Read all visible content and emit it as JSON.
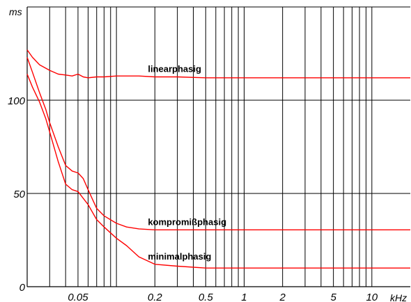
{
  "chart_data": {
    "type": "line",
    "ylabel": "ms",
    "xlabel": "kHz",
    "xscale": "log",
    "xlim": [
      0.02,
      20
    ],
    "ylim": [
      0,
      150
    ],
    "yticks": [
      {
        "value": 0,
        "label": "0"
      },
      {
        "value": 50,
        "label": "50"
      },
      {
        "value": 100,
        "label": "100"
      }
    ],
    "xticks": [
      {
        "value": 0.05,
        "label": "0.05"
      },
      {
        "value": 0.2,
        "label": "0.2"
      },
      {
        "value": 0.5,
        "label": "0.5"
      },
      {
        "value": 1,
        "label": "1"
      },
      {
        "value": 2,
        "label": "2"
      },
      {
        "value": 5,
        "label": "5"
      },
      {
        "value": 10,
        "label": "10"
      }
    ],
    "grid": true,
    "line_color": "#ff0000",
    "series": [
      {
        "name": "linearphasig",
        "x": [
          0.02,
          0.022,
          0.025,
          0.03,
          0.035,
          0.04,
          0.045,
          0.05,
          0.055,
          0.06,
          0.07,
          0.08,
          0.1,
          0.15,
          0.2,
          0.3,
          0.5,
          0.7,
          1,
          2,
          5,
          10,
          20
        ],
        "y": [
          127,
          123,
          119,
          116,
          114,
          113.5,
          113,
          114,
          112.5,
          112,
          112.5,
          112.5,
          113,
          113,
          112.5,
          112.5,
          112,
          112,
          112,
          112,
          112,
          112,
          112
        ]
      },
      {
        "name": "kompromißphasig",
        "x": [
          0.02,
          0.022,
          0.025,
          0.028,
          0.03,
          0.035,
          0.04,
          0.045,
          0.05,
          0.055,
          0.06,
          0.07,
          0.08,
          0.1,
          0.12,
          0.15,
          0.2,
          0.3,
          0.5,
          1,
          2,
          5,
          10,
          20
        ],
        "y": [
          123,
          115,
          104,
          95,
          88,
          75,
          65,
          62,
          61,
          58,
          52,
          42,
          38,
          34,
          32,
          31,
          30.5,
          30.5,
          30.5,
          30.5,
          30.5,
          30.5,
          30.5,
          30.5
        ]
      },
      {
        "name": "minimalphasig",
        "x": [
          0.02,
          0.022,
          0.025,
          0.028,
          0.03,
          0.035,
          0.04,
          0.045,
          0.05,
          0.06,
          0.07,
          0.08,
          0.1,
          0.12,
          0.15,
          0.2,
          0.3,
          0.5,
          1,
          2,
          5,
          10,
          20
        ],
        "y": [
          114,
          107,
          99,
          90,
          83,
          67,
          55,
          52,
          51,
          44,
          36,
          32,
          26,
          22,
          16,
          12,
          11,
          10,
          10,
          10,
          10,
          10,
          10
        ]
      }
    ],
    "annotations": [
      {
        "text": "linearphasig",
        "series": "linearphasig"
      },
      {
        "text": "kompromißphasig",
        "series": "kompromißphasig"
      },
      {
        "text": "minimalphasig",
        "series": "minimalphasig"
      }
    ]
  }
}
